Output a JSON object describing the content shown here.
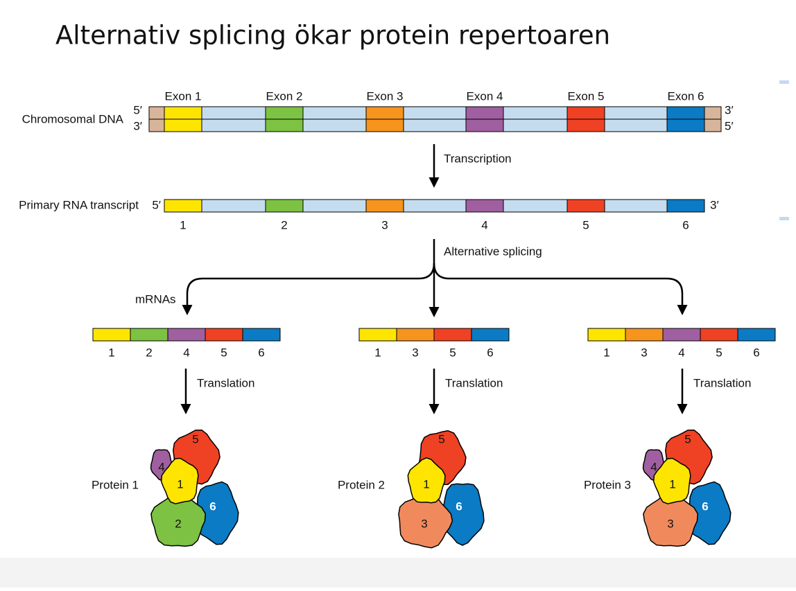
{
  "title": "Alternativ splicing ökar protein repertoaren",
  "exon_colors": [
    "#fde500",
    "#7dc242",
    "#f7941d",
    "#a05fa0",
    "#ef4123",
    "#0a7bc4"
  ],
  "dna": {
    "label": "Chromosomal DNA",
    "exons": [
      "Exon 1",
      "Exon 2",
      "Exon 3",
      "Exon 4",
      "Exon 5",
      "Exon 6"
    ],
    "top_left": "5′",
    "bottom_left": "3′",
    "top_right": "3′",
    "bottom_right": "5′"
  },
  "transcription": "Transcription",
  "primary": {
    "label": "Primary RNA transcript",
    "left": "5′",
    "right": "3′",
    "numbers": [
      "1",
      "2",
      "3",
      "4",
      "5",
      "6"
    ]
  },
  "splicing": "Alternative splicing",
  "mrnas_label": "mRNAs",
  "mrnas": [
    {
      "numbers": [
        "1",
        "2",
        "4",
        "5",
        "6"
      ],
      "translation": "Translation"
    },
    {
      "numbers": [
        "1",
        "3",
        "5",
        "6"
      ],
      "translation": "Translation"
    },
    {
      "numbers": [
        "1",
        "3",
        "4",
        "5",
        "6"
      ],
      "translation": "Translation"
    }
  ],
  "proteins": [
    {
      "label": "Protein 1",
      "parts": [
        "4",
        "6",
        "5",
        "2",
        "1"
      ]
    },
    {
      "label": "Protein 2",
      "parts": [
        "6",
        "5",
        "3",
        "1"
      ]
    },
    {
      "label": "Protein 3",
      "parts": [
        "4",
        "6",
        "5",
        "3",
        "1"
      ]
    }
  ]
}
